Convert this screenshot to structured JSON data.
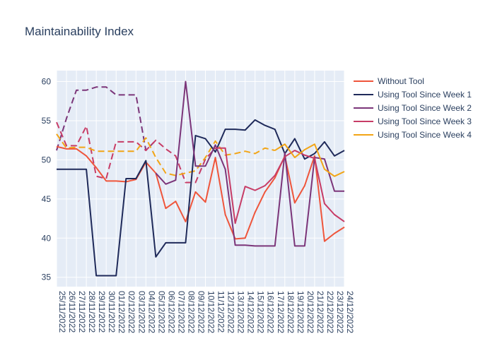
{
  "chart_data": {
    "type": "line",
    "title": "Maintainability Index",
    "xlabel": "",
    "ylabel": "",
    "ylim": [
      33.8,
      61.4
    ],
    "yticks": [
      35,
      40,
      45,
      50,
      55,
      60
    ],
    "grid": true,
    "legend_position": "right",
    "x": [
      "25/11/2022",
      "26/11/2022",
      "27/11/2022",
      "28/11/2022",
      "29/11/2022",
      "30/11/2022",
      "01/12/2022",
      "02/12/2022",
      "03/12/2022",
      "04/12/2022",
      "05/12/2022",
      "06/12/2022",
      "07/12/2022",
      "08/12/2022",
      "09/12/2022",
      "10/12/2022",
      "11/12/2022",
      "12/12/2022",
      "13/12/2022",
      "14/12/2022",
      "15/12/2022",
      "16/12/2022",
      "17/12/2022",
      "18/12/2022",
      "19/12/2022",
      "20/12/2022",
      "21/12/2022",
      "22/12/2022",
      "23/12/2022",
      "24/12/2022"
    ],
    "series": [
      {
        "name": "Without Tool",
        "color": "#ef553b",
        "dash": "solid",
        "values": [
          51.7,
          51.4,
          51.4,
          50.5,
          49.0,
          47.3,
          47.3,
          47.2,
          47.5,
          49.7,
          48.3,
          43.8,
          44.7,
          42.1,
          45.9,
          44.6,
          50.3,
          43.0,
          39.9,
          40.0,
          43.3,
          45.9,
          47.7,
          50.5,
          44.5,
          46.7,
          50.5,
          39.6,
          40.6,
          41.4
        ]
      },
      {
        "name": "Using Tool Since Week 1",
        "color": "#1f2a5a",
        "dash": "solid",
        "values": [
          48.8,
          48.8,
          48.8,
          48.8,
          35.2,
          35.2,
          35.2,
          47.6,
          47.6,
          49.9,
          37.6,
          39.4,
          39.4,
          39.4,
          53.1,
          52.7,
          51.0,
          53.9,
          53.9,
          53.8,
          55.1,
          54.4,
          53.9,
          50.8,
          52.7,
          50.1,
          50.8,
          52.3,
          50.5,
          51.2
        ]
      },
      {
        "name": "Using Tool Since Week 2",
        "color": "#7b3579",
        "dash": "solid",
        "values": [
          null,
          null,
          null,
          null,
          null,
          null,
          null,
          null,
          null,
          null,
          48.3,
          46.9,
          47.4,
          60.0,
          49.2,
          49.2,
          51.9,
          48.8,
          39.1,
          39.1,
          39.0,
          39.0,
          39.0,
          50.9,
          39.0,
          39.0,
          50.3,
          50.1,
          46.0,
          46.0
        ]
      },
      {
        "name": "Using Tool Since Week 3",
        "color": "#c73c66",
        "dash": "solid",
        "values": [
          null,
          null,
          null,
          null,
          null,
          null,
          null,
          null,
          null,
          null,
          null,
          null,
          null,
          null,
          null,
          null,
          51.5,
          51.5,
          41.9,
          46.6,
          46.1,
          46.7,
          48.0,
          50.4,
          51.2,
          50.6,
          50.2,
          44.4,
          43.0,
          42.1
        ]
      },
      {
        "name": "Using Tool Since Week 4",
        "color": "#f2a516",
        "dash": "solid",
        "values": [
          null,
          null,
          null,
          null,
          null,
          null,
          null,
          null,
          null,
          null,
          null,
          null,
          null,
          null,
          null,
          null,
          null,
          null,
          null,
          null,
          null,
          null,
          51.2,
          52.0,
          50.3,
          51.3,
          52.0,
          48.8,
          47.9,
          48.5
        ]
      },
      {
        "name": "",
        "color": "#7b3579",
        "dash": "dash",
        "values": [
          51.2,
          55.3,
          58.9,
          58.9,
          59.3,
          59.3,
          58.3,
          58.3,
          58.3,
          51.2,
          52.5,
          null,
          null,
          null,
          null,
          null,
          null,
          null,
          null,
          null,
          null,
          null,
          null,
          null,
          null,
          null,
          null,
          null,
          null,
          null
        ]
      },
      {
        "name": "",
        "color": "#c73c66",
        "dash": "dash",
        "values": [
          54.8,
          51.8,
          51.8,
          54.3,
          47.9,
          47.6,
          52.3,
          52.3,
          52.3,
          51.2,
          52.5,
          51.4,
          50.5,
          47.1,
          47.1,
          50.1,
          51.5,
          null,
          null,
          null,
          null,
          null,
          null,
          null,
          null,
          null,
          null,
          null,
          null,
          null
        ]
      },
      {
        "name": "",
        "color": "#f2a516",
        "dash": "dash",
        "values": [
          53.3,
          51.5,
          51.6,
          51.6,
          51.1,
          51.1,
          51.1,
          51.1,
          51.1,
          52.8,
          50.3,
          48.3,
          48.0,
          48.3,
          48.6,
          50.3,
          52.4,
          50.6,
          50.8,
          51.1,
          50.8,
          51.5,
          51.2,
          null,
          null,
          null,
          null,
          null,
          null,
          null
        ]
      }
    ]
  }
}
